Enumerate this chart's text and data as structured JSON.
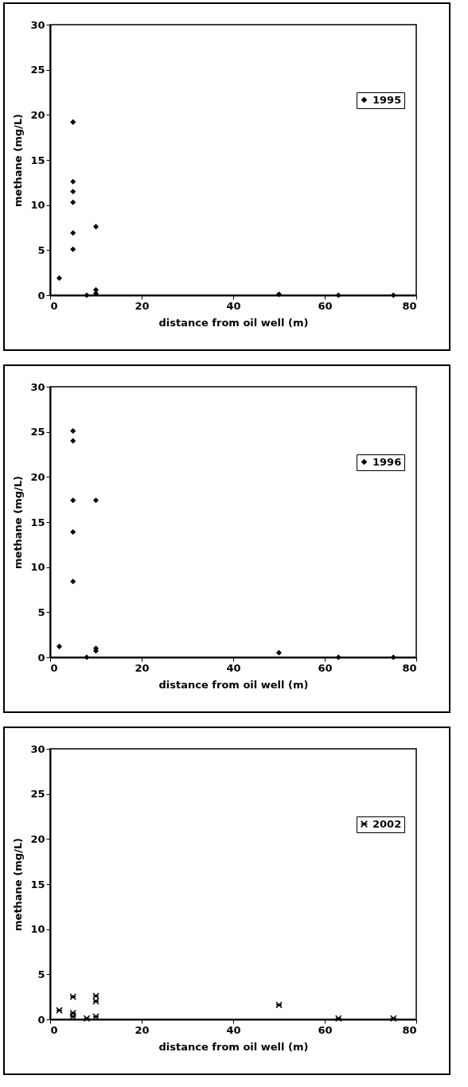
{
  "chart_data": [
    {
      "type": "scatter",
      "xlabel": "distance from oil well (m)",
      "ylabel": "methane (mg/L)",
      "xlim": [
        0,
        80
      ],
      "xticks": [
        0,
        20,
        40,
        60,
        80
      ],
      "ylim": [
        0,
        30
      ],
      "yticks": [
        0,
        5,
        10,
        15,
        20,
        25,
        30
      ],
      "grid": false,
      "legend": "right",
      "marker": "diamond",
      "series": [
        {
          "name": "1995",
          "color": "#000000",
          "x": [
            2,
            5,
            5,
            5,
            5,
            5,
            5,
            8,
            10,
            10,
            10,
            50,
            63,
            75
          ],
          "values": [
            1.9,
            19.2,
            12.6,
            11.5,
            10.3,
            6.9,
            5.1,
            0,
            7.6,
            0.6,
            0.2,
            0.1,
            0,
            0
          ]
        }
      ]
    },
    {
      "type": "scatter",
      "xlabel": "distance from oil well (m)",
      "ylabel": "methane (mg/L)",
      "xlim": [
        0,
        80
      ],
      "xticks": [
        0,
        20,
        40,
        60,
        80
      ],
      "ylim": [
        0,
        30
      ],
      "yticks": [
        0,
        5,
        10,
        15,
        20,
        25,
        30
      ],
      "grid": false,
      "legend": "right",
      "marker": "diamond",
      "series": [
        {
          "name": "1996",
          "color": "#000000",
          "x": [
            2,
            5,
            5,
            5,
            5,
            5,
            8,
            10,
            10,
            10,
            50,
            63,
            75
          ],
          "values": [
            1.2,
            25.1,
            24.0,
            17.4,
            13.9,
            8.4,
            0,
            17.4,
            1.0,
            0.7,
            0.5,
            0,
            0
          ]
        }
      ]
    },
    {
      "type": "scatter",
      "xlabel": "distance from oil well (m)",
      "ylabel": "methane (mg/L)",
      "xlim": [
        0,
        80
      ],
      "xticks": [
        0,
        20,
        40,
        60,
        80
      ],
      "ylim": [
        0,
        30
      ],
      "yticks": [
        0,
        5,
        10,
        15,
        20,
        25,
        30
      ],
      "grid": false,
      "legend": "right",
      "marker": "cross",
      "series": [
        {
          "name": "2002",
          "color": "#000000",
          "x": [
            2,
            5,
            5,
            5,
            8,
            10,
            10,
            10,
            50,
            63,
            75
          ],
          "values": [
            1.0,
            2.5,
            0.7,
            0.3,
            0.1,
            2.6,
            2.0,
            0.3,
            1.6,
            0.1,
            0.1
          ]
        }
      ]
    }
  ]
}
